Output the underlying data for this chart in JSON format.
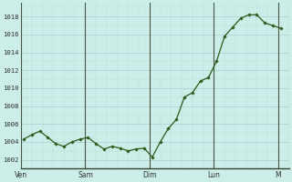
{
  "background_color": "#cceee8",
  "grid_color_major": "#aacccc",
  "grid_color_minor": "#bbdddd",
  "line_color": "#2d5a1b",
  "marker_color": "#2d5a1b",
  "ylabel_values": [
    1002,
    1004,
    1006,
    1008,
    1010,
    1012,
    1014,
    1016,
    1018
  ],
  "ylim": [
    1001.0,
    1019.5
  ],
  "xlim": [
    0,
    100
  ],
  "x_day_positions": [
    0,
    24,
    48,
    72,
    96
  ],
  "x_tick_labels": [
    "Ven",
    "Sam",
    "Dim",
    "Lun",
    "M"
  ],
  "x_vlines": [
    0,
    24,
    48,
    72,
    96
  ],
  "data_x": [
    1,
    4,
    7,
    10,
    13,
    16,
    19,
    22,
    25,
    28,
    31,
    34,
    37,
    40,
    43,
    46,
    49,
    52,
    55,
    58,
    61,
    64,
    67,
    70,
    73,
    76,
    79,
    82,
    85,
    88,
    91,
    94,
    97
  ],
  "data_y": [
    1004.3,
    1004.8,
    1005.2,
    1004.5,
    1003.8,
    1003.5,
    1004.0,
    1004.3,
    1004.5,
    1003.8,
    1003.2,
    1003.5,
    1003.3,
    1003.0,
    1003.2,
    1003.3,
    1002.3,
    1004.0,
    1005.5,
    1006.5,
    1009.0,
    1009.5,
    1010.8,
    1011.2,
    1013.0,
    1015.8,
    1016.8,
    1017.8,
    1018.2,
    1018.2,
    1017.3,
    1017.0,
    1016.7
  ]
}
